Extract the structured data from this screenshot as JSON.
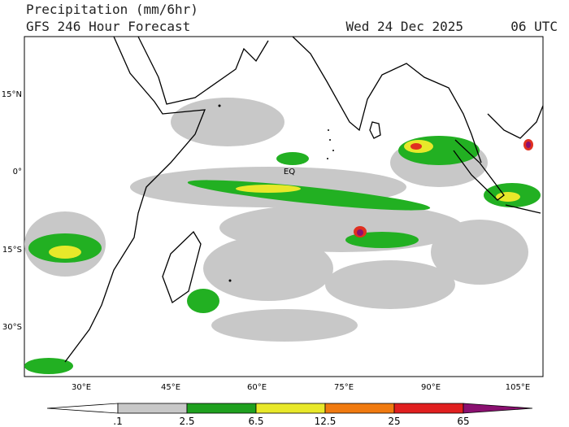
{
  "header": {
    "title": "Precipitation (mm/6hr)",
    "subtitle": "GFS 246 Hour Forecast",
    "date": "Wed 24 Dec 2025",
    "time": "06 UTC"
  },
  "map": {
    "lat_labels": [
      "15°N",
      "0°",
      "15°S",
      "30°S"
    ],
    "lon_labels": [
      "30°E",
      "45°E",
      "60°E",
      "75°E",
      "90°E",
      "105°E"
    ],
    "annotations": [
      "EQ"
    ]
  },
  "colorbar": {
    "labels": [
      ".1",
      "2.5",
      "6.5",
      "12.5",
      "25",
      "65"
    ]
  }
}
